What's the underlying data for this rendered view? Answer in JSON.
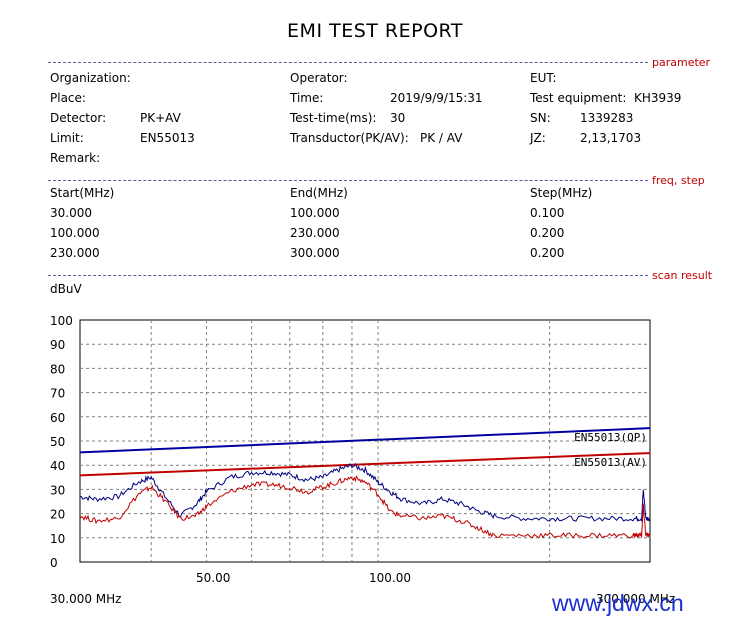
{
  "report": {
    "title": "EMI TEST REPORT"
  },
  "sections": {
    "parameter": "parameter",
    "freq_step": "freq, step",
    "scan_result": "scan result"
  },
  "parameters": {
    "organization_label": "Organization:",
    "organization_value": "",
    "place_label": "Place:",
    "place_value": "",
    "detector_label": "Detector:",
    "detector_value": "PK+AV",
    "limit_label": "Limit:",
    "limit_value": "EN55013",
    "remark_label": "Remark:",
    "remark_value": "",
    "operator_label": "Operator:",
    "operator_value": "",
    "time_label": "Time:",
    "time_value": "2019/9/9/15:31",
    "test_time_label": "Test-time(ms):",
    "test_time_value": "30",
    "transductor_label": "Transductor(PK/AV):",
    "transductor_value": "PK  /  AV",
    "eut_label": "EUT:",
    "eut_value": "",
    "test_equipment_label": "Test equipment:",
    "test_equipment_value": "KH3939",
    "sn_label": "SN:",
    "sn_value": "1339283",
    "jz_label": "JZ:",
    "jz_value": "2,13,1703"
  },
  "freq_table": {
    "headers": [
      "Start(MHz)",
      "End(MHz)",
      "Step(MHz)"
    ],
    "rows": [
      [
        "30.000",
        "100.000",
        "0.100"
      ],
      [
        "100.000",
        "230.000",
        "0.200"
      ],
      [
        "230.000",
        "300.000",
        "0.200"
      ]
    ]
  },
  "watermark": "www.jdwx.cn",
  "chart_data": {
    "type": "line",
    "ylabel": "dBuV",
    "ylim": [
      0,
      100
    ],
    "yticks": [
      0,
      10,
      20,
      30,
      40,
      50,
      60,
      70,
      80,
      90,
      100
    ],
    "xlim": [
      30,
      300
    ],
    "xscale": "log",
    "xtick_labels": {
      "left": "30.000 MHz",
      "mid1": "50.00",
      "mid2": "100.00",
      "right": "300.000 MHz"
    },
    "xticks": [
      50,
      100
    ],
    "grid": true,
    "limit_lines": [
      {
        "name": "EN55013(QP)",
        "color": "#0000a0",
        "x": [
          30,
          300
        ],
        "y": [
          45.3,
          55.3
        ]
      },
      {
        "name": "EN55013(AV)",
        "color": "#c00000",
        "x": [
          30,
          300
        ],
        "y": [
          35.8,
          45.0
        ]
      }
    ],
    "series": [
      {
        "color": "#000080",
        "x": [
          30,
          32,
          35,
          38,
          40,
          42,
          45,
          48,
          50,
          55,
          60,
          65,
          70,
          75,
          80,
          85,
          90,
          95,
          100,
          105,
          110,
          120,
          130,
          140,
          150,
          160,
          180,
          200,
          220,
          250,
          280,
          290,
          292,
          295,
          300
        ],
        "y": [
          27,
          26,
          27,
          33,
          35,
          28,
          19,
          24,
          29,
          35,
          37,
          37,
          36,
          34,
          35,
          38,
          40,
          38,
          33,
          29,
          26,
          24,
          26,
          24,
          21,
          19,
          18,
          18,
          18,
          18,
          18,
          18,
          30,
          18,
          18
        ]
      },
      {
        "color": "#c00000",
        "x": [
          30,
          32,
          35,
          38,
          40,
          42,
          45,
          48,
          50,
          55,
          60,
          65,
          70,
          75,
          80,
          85,
          90,
          95,
          100,
          105,
          110,
          120,
          130,
          140,
          150,
          160,
          180,
          200,
          220,
          250,
          280,
          290,
          292,
          295,
          300
        ],
        "y": [
          19,
          17,
          18,
          28,
          31,
          26,
          18,
          19,
          23,
          29,
          32,
          32,
          31,
          29,
          31,
          33,
          35,
          33,
          28,
          21,
          19,
          18,
          19,
          17,
          14,
          11,
          11,
          11,
          11,
          11,
          11,
          11,
          23,
          11,
          11
        ]
      }
    ]
  }
}
